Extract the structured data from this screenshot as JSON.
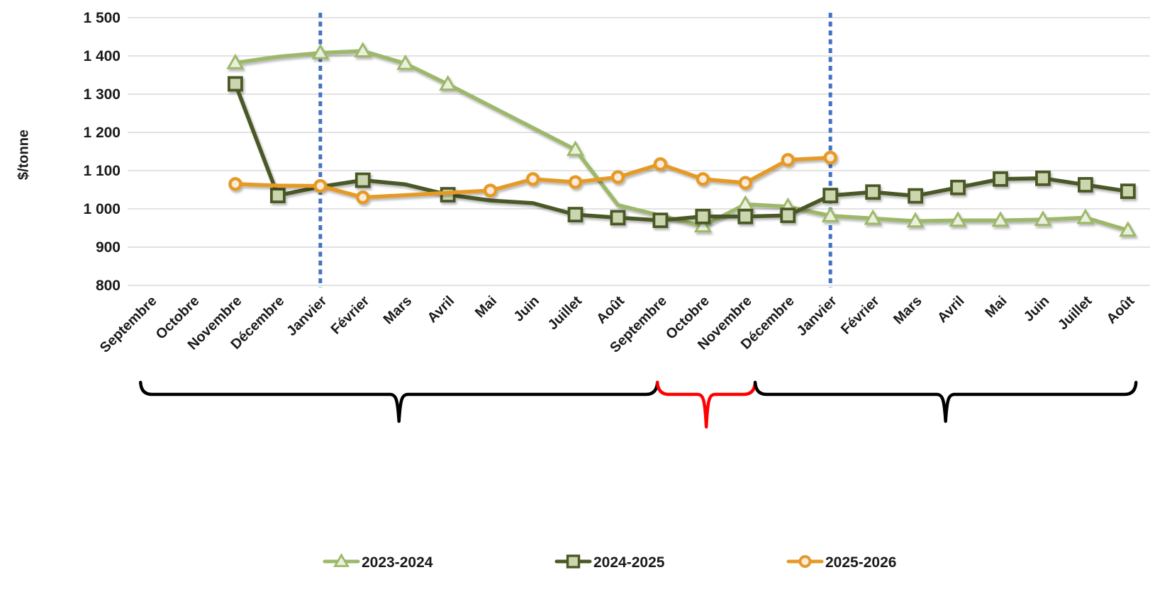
{
  "page": {
    "background": "#FFFFFF"
  },
  "chart_data": {
    "type": "line",
    "title": "",
    "xlabel": "",
    "ylabel": "$/tonne",
    "ylim": [
      800,
      1500
    ],
    "y_tick_step": 100,
    "y_tick_labels": [
      "800",
      "900",
      "1 000",
      "1 100",
      "1 200",
      "1 300",
      "1 400",
      "1 500"
    ],
    "grid": "horizontal",
    "grid_color": "#D9D9D9",
    "categories": [
      "Septembre",
      "Octobre",
      "Novembre",
      "Décembre",
      "Janvier",
      "Février",
      "Mars",
      "Avril",
      "Mai",
      "Juin",
      "Juillet",
      "Août",
      "Septembre",
      "Octobre",
      "Novembre",
      "Décembre",
      "Janvier",
      "Février",
      "Mars",
      "Avril",
      "Mai",
      "Juin",
      "Juillet",
      "Août"
    ],
    "series": [
      {
        "name": "2023-2024",
        "marker": "triangle",
        "color": "#9DB86A",
        "marker_fill": "#EAF0DC",
        "values": [
          null,
          null,
          1382,
          1398,
          1408,
          1413,
          1380,
          1326,
          null,
          null,
          1155,
          1010,
          null,
          955,
          1012,
          1006,
          982,
          975,
          968,
          970,
          970,
          972,
          977,
          944
        ],
        "markers": [
          false,
          false,
          true,
          false,
          true,
          true,
          true,
          true,
          false,
          false,
          true,
          false,
          false,
          true,
          true,
          true,
          true,
          true,
          true,
          true,
          true,
          true,
          true,
          true
        ]
      },
      {
        "name": "2024-2025",
        "marker": "square",
        "color": "#4A5826",
        "marker_fill": "#CCD6AE",
        "values": [
          null,
          null,
          1327,
          1035,
          1058,
          1075,
          1064,
          1037,
          1022,
          1015,
          985,
          977,
          970,
          980,
          980,
          983,
          1035,
          1044,
          1034,
          1056,
          1078,
          1080,
          1063,
          1046
        ],
        "markers": [
          false,
          false,
          true,
          true,
          false,
          true,
          false,
          true,
          false,
          false,
          true,
          true,
          true,
          true,
          true,
          true,
          true,
          true,
          true,
          true,
          true,
          true,
          true,
          true
        ]
      },
      {
        "name": "2025-2026",
        "marker": "circle",
        "color": "#E59A28",
        "marker_fill": "#FBEBDD",
        "values": [
          null,
          null,
          1065,
          1061,
          1060,
          1030,
          1036,
          1042,
          1048,
          1078,
          1070,
          1083,
          1117,
          1078,
          1068,
          1128,
          1134,
          null,
          null,
          null,
          null,
          null,
          null,
          null
        ],
        "markers": [
          false,
          false,
          true,
          false,
          true,
          true,
          false,
          false,
          true,
          true,
          true,
          true,
          true,
          true,
          true,
          true,
          true,
          false,
          false,
          false,
          false,
          false,
          false,
          false
        ]
      }
    ],
    "vlines": [
      {
        "month_index": 4,
        "color": "#4472C4",
        "style": "dotted"
      },
      {
        "month_index": 16,
        "color": "#4472C4",
        "style": "dotted"
      }
    ],
    "braces": [
      {
        "from_month": -0.23,
        "to_month": 11.93,
        "color": "#000000"
      },
      {
        "from_month": 11.93,
        "to_month": 14.23,
        "color": "#FF0000"
      },
      {
        "from_month": 14.23,
        "to_month": 23.19,
        "color": "#000000"
      }
    ],
    "legend": {
      "position": "bottom",
      "entries": [
        "2023-2024",
        "2024-2025",
        "2025-2026"
      ]
    }
  }
}
